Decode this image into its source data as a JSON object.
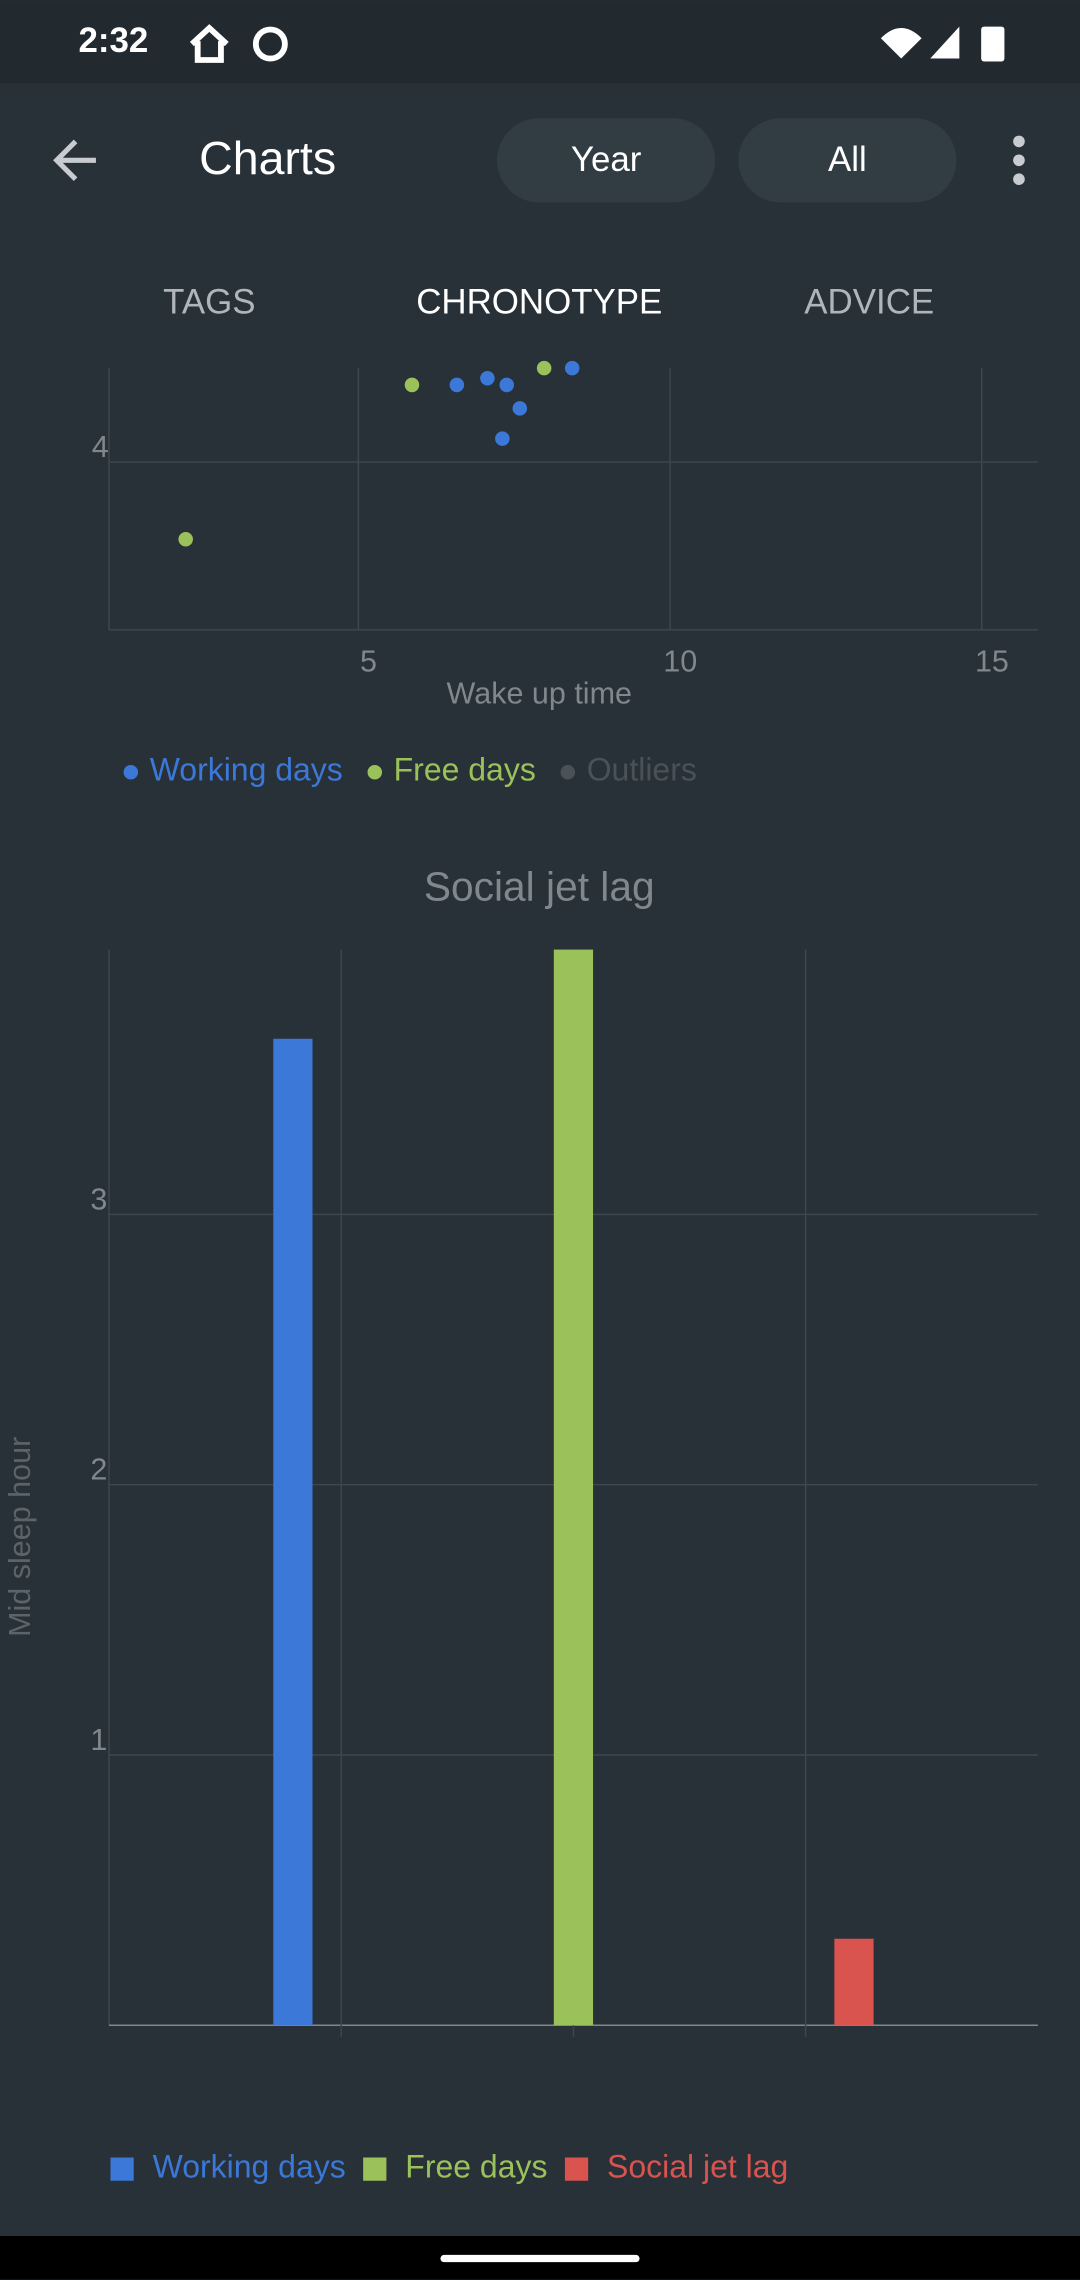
{
  "status_bar": {
    "time": "2:32"
  },
  "app_bar": {
    "title": "Charts",
    "buttons": [
      "Year",
      "All"
    ]
  },
  "tabs": [
    "TAGS",
    "CHRONOTYPE",
    "ADVICE"
  ],
  "chart_data": [
    {
      "type": "scatter",
      "xlabel": "Wake up time",
      "xlim": [
        1,
        15.9
      ],
      "ylim": [
        3.5,
        4.28
      ],
      "xticks": [
        5,
        10,
        15
      ],
      "yticks": [
        4
      ],
      "grid": true,
      "series": [
        {
          "name": "Working days",
          "color": "#3b78d8",
          "x": [
            6.58,
            7.07,
            7.38,
            7.59,
            7.31,
            8.43
          ],
          "y": [
            4.23,
            4.25,
            4.23,
            4.16,
            4.07,
            4.28
          ]
        },
        {
          "name": "Free days",
          "color": "#9bc25a",
          "x": [
            2.23,
            5.86,
            7.98
          ],
          "y": [
            3.77,
            4.23,
            4.28
          ]
        },
        {
          "name": "Outliers",
          "color": "#4a5258",
          "x": [],
          "y": []
        }
      ]
    },
    {
      "type": "bar",
      "title": "Social jet lag",
      "ylabel": "Mid sleep hour",
      "ylim": [
        0,
        3.98
      ],
      "yticks": [
        1,
        2,
        3
      ],
      "grid": true,
      "categories": [
        null,
        null,
        null
      ],
      "series": [
        {
          "name": "Working days",
          "color": "#3b78d8",
          "values": [
            3.65,
            null,
            null
          ]
        },
        {
          "name": "Free days",
          "color": "#9bc25a",
          "values": [
            null,
            3.98,
            null
          ]
        },
        {
          "name": "Social jet lag",
          "color": "#d9534f",
          "values": [
            null,
            null,
            0.32
          ]
        }
      ]
    }
  ]
}
